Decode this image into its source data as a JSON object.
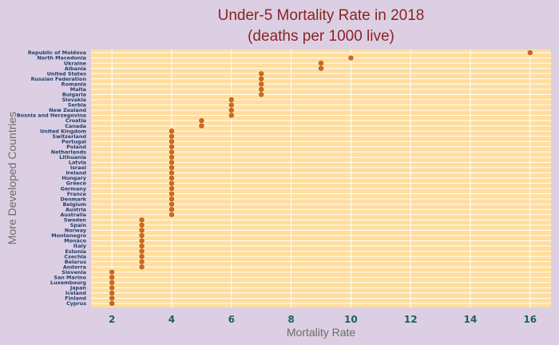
{
  "chart_data": {
    "type": "scatter",
    "title": "Under-5 Mortality Rate in 2018",
    "subtitle": "(deaths per 1000 live)",
    "xlabel": "Mortality Rate",
    "ylabel": "More Developed Countries",
    "xlim": [
      1.3,
      16.7
    ],
    "x_ticks": [
      2,
      4,
      6,
      8,
      10,
      12,
      14,
      16
    ],
    "categories": [
      "Republic of Moldova",
      "North Macedonia",
      "Ukraine",
      "Albania",
      "United States",
      "Russian Federation",
      "Romania",
      "Malta",
      "Bulgaria",
      "Slovakia",
      "Serbia",
      "New Zealand",
      "Bosnia and Herzegovina",
      "Croatia",
      "Canada",
      "United Kingdom",
      "Switzerland",
      "Portugal",
      "Poland",
      "Netherlands",
      "Lithuania",
      "Latvia",
      "Israel",
      "Ireland",
      "Hungary",
      "Greece",
      "Germany",
      "France",
      "Denmark",
      "Belgium",
      "Austria",
      "Australia",
      "Sweden",
      "Spain",
      "Norway",
      "Montenegro",
      "Monaco",
      "Italy",
      "Estonia",
      "Czechia",
      "Belarus",
      "Andorra",
      "Slovenia",
      "San Marino",
      "Luxembourg",
      "Japan",
      "Iceland",
      "Finland",
      "Cyprus"
    ],
    "values": [
      16,
      10,
      9,
      9,
      7,
      7,
      7,
      7,
      7,
      6,
      6,
      6,
      6,
      5,
      5,
      4,
      4,
      4,
      4,
      4,
      4,
      4,
      4,
      4,
      4,
      4,
      4,
      4,
      4,
      4,
      4,
      4,
      3,
      3,
      3,
      3,
      3,
      3,
      3,
      3,
      3,
      3,
      2,
      2,
      2,
      2,
      2,
      2,
      2
    ],
    "grid": true
  },
  "colors": {
    "panel": "#ffdd9e",
    "grid": "#ffffff",
    "point": "#d2691e",
    "point_stroke": "#a0501a",
    "category_text": "#1f3e6b",
    "tick_text": "#1f5f5f",
    "title": "#8b2323",
    "axis_title": "#6b6b6b"
  }
}
